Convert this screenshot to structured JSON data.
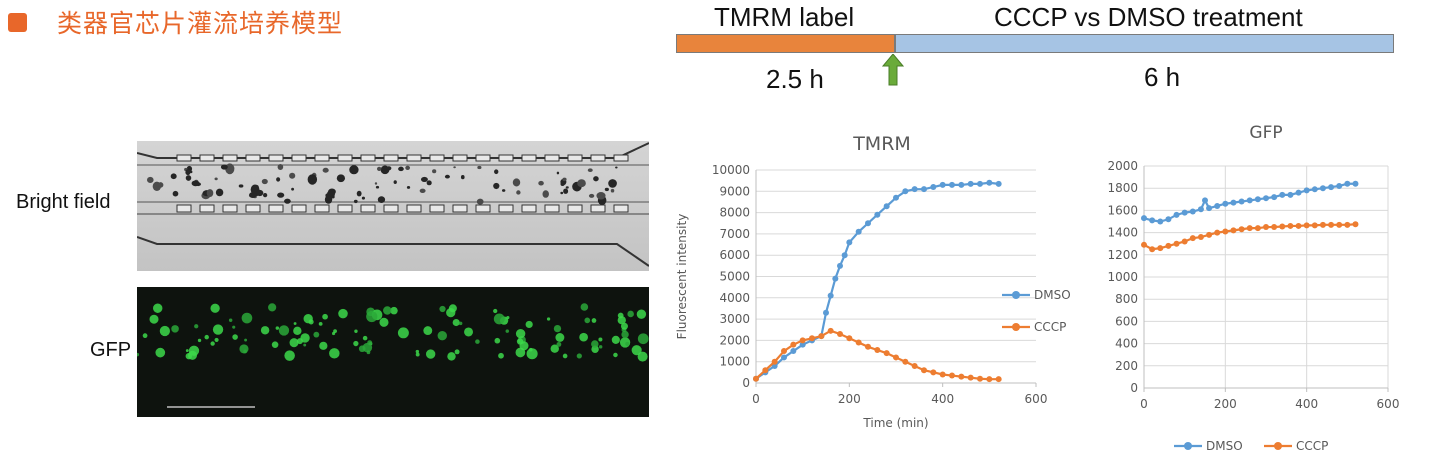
{
  "slide": {
    "title": "类器官芯片灌流培养模型",
    "accent_color": "#e8672a"
  },
  "timeline": {
    "phases": [
      {
        "label": "TMRM label",
        "duration": "2.5 h",
        "hours": 2.5,
        "color": "#e8843c"
      },
      {
        "label": "CCCP vs DMSO treatment",
        "duration": "6 h",
        "hours": 6,
        "color": "#a6c4e4"
      }
    ],
    "marker": "green-arrow-up-icon",
    "marker_color": "#6aab3a"
  },
  "images": {
    "bright_field_label": "Bright field",
    "gfp_label": "GFP"
  },
  "chart_data": [
    {
      "type": "line",
      "title": "TMRM",
      "xlabel": "Time (min)",
      "ylabel": "Fluorescent intensity",
      "xlim": [
        0,
        600
      ],
      "ylim": [
        0,
        10000
      ],
      "xticks": [
        0,
        200,
        400,
        600
      ],
      "yticks": [
        0,
        1000,
        2000,
        3000,
        4000,
        5000,
        6000,
        7000,
        8000,
        9000,
        10000
      ],
      "grid": "horizontal",
      "legend": "right",
      "series": [
        {
          "name": "DMSO",
          "color": "#5b9bd5",
          "x": [
            0,
            20,
            40,
            60,
            80,
            100,
            120,
            140,
            150,
            160,
            170,
            180,
            190,
            200,
            220,
            240,
            260,
            280,
            300,
            320,
            340,
            360,
            380,
            400,
            420,
            440,
            460,
            480,
            500,
            520
          ],
          "y": [
            200,
            500,
            800,
            1200,
            1500,
            1800,
            2000,
            2200,
            3300,
            4100,
            4900,
            5500,
            6000,
            6600,
            7100,
            7500,
            7900,
            8300,
            8700,
            9000,
            9100,
            9100,
            9200,
            9300,
            9300,
            9300,
            9350,
            9350,
            9400,
            9350
          ]
        },
        {
          "name": "CCCP",
          "color": "#ed7d31",
          "x": [
            0,
            20,
            40,
            60,
            80,
            100,
            120,
            140,
            160,
            180,
            200,
            220,
            240,
            260,
            280,
            300,
            320,
            340,
            360,
            380,
            400,
            420,
            440,
            460,
            480,
            500,
            520
          ],
          "y": [
            200,
            600,
            1000,
            1500,
            1800,
            2000,
            2100,
            2200,
            2450,
            2300,
            2100,
            1900,
            1700,
            1550,
            1400,
            1200,
            1000,
            800,
            600,
            500,
            400,
            350,
            300,
            250,
            200,
            180,
            180
          ]
        }
      ]
    },
    {
      "type": "line",
      "title": "GFP",
      "xlabel": "",
      "ylabel": "",
      "xlim": [
        0,
        600
      ],
      "ylim": [
        0,
        2000
      ],
      "xticks": [
        0,
        200,
        400,
        600
      ],
      "yticks": [
        0,
        200,
        400,
        600,
        800,
        1000,
        1200,
        1400,
        1600,
        1800,
        2000
      ],
      "grid": "both",
      "legend": "bottom",
      "series": [
        {
          "name": "DMSO",
          "color": "#5b9bd5",
          "x": [
            0,
            20,
            40,
            60,
            80,
            100,
            120,
            140,
            150,
            160,
            180,
            200,
            220,
            240,
            260,
            280,
            300,
            320,
            340,
            360,
            380,
            400,
            420,
            440,
            460,
            480,
            500,
            520
          ],
          "y": [
            1530,
            1510,
            1500,
            1520,
            1560,
            1580,
            1590,
            1610,
            1690,
            1620,
            1640,
            1660,
            1670,
            1680,
            1690,
            1700,
            1710,
            1720,
            1740,
            1740,
            1760,
            1780,
            1790,
            1800,
            1810,
            1820,
            1840,
            1840
          ]
        },
        {
          "name": "CCCP",
          "color": "#ed7d31",
          "x": [
            0,
            20,
            40,
            60,
            80,
            100,
            120,
            140,
            160,
            180,
            200,
            220,
            240,
            260,
            280,
            300,
            320,
            340,
            360,
            380,
            400,
            420,
            440,
            460,
            480,
            500,
            520
          ],
          "y": [
            1290,
            1250,
            1260,
            1280,
            1300,
            1320,
            1350,
            1360,
            1380,
            1400,
            1410,
            1420,
            1430,
            1440,
            1440,
            1450,
            1450,
            1455,
            1460,
            1460,
            1465,
            1465,
            1470,
            1470,
            1470,
            1470,
            1475
          ]
        }
      ]
    }
  ]
}
